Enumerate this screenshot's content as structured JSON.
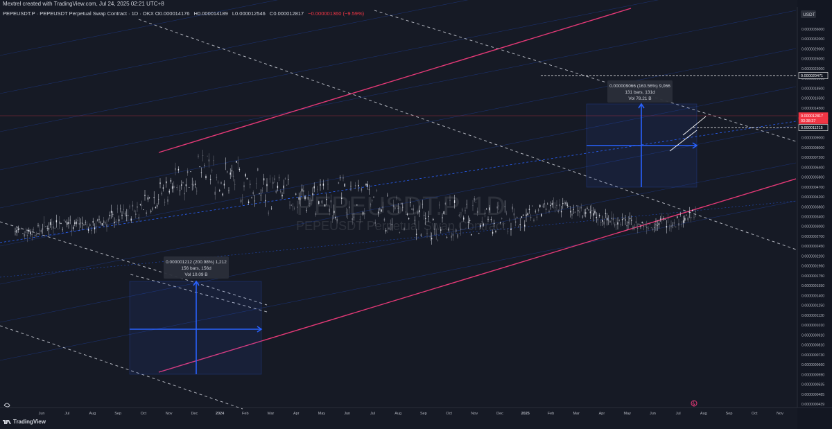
{
  "header": {
    "credit": "Mextrel created with TradingView.com, Jul 24, 2025 02:21 UTC+8",
    "symbol_line": "PEPEUSDT.P · PEPEUSDT Perpetual Swap Contract · 1D · OKX",
    "ohlc": [
      {
        "label": "O",
        "value": "0.000014176"
      },
      {
        "label": "H",
        "value": "0.000014189"
      },
      {
        "label": "L",
        "value": "0.000012546"
      },
      {
        "label": "C",
        "value": "0.000012817"
      }
    ],
    "change": "−0.000001360 (−9.59%)"
  },
  "watermark": {
    "symbol": "PEPEUSDT.P, 1D",
    "description": "PEPEUSDT Perpetual Swap Contract"
  },
  "footer": {
    "brand": "TradingView"
  },
  "colors": {
    "background": "#161a25",
    "up": "#26a69a",
    "down": "#ef5350",
    "channel_red": "#e53977",
    "projection_blue": "#2962ff",
    "dashed_white": "#b2b5be",
    "last_price": "#f23645"
  },
  "chart_data": {
    "type": "line",
    "title": "PEPEUSDT.P · PEPEUSDT Perpetual Swap Contract · 1D · OKX",
    "price_currency": "USDT",
    "y_scale": "log",
    "y_ticks": [
      "0.0000036000",
      "0.0000032000",
      "0.0000029000",
      "0.0000026000",
      "0.0000023000",
      "0.0000021000",
      "0.0000018500",
      "0.0000016500",
      "0.0000014500",
      "0.0000011000",
      "0.0000010000",
      "0.0000009000",
      "0.0000008000",
      "0.0000007200",
      "0.0000006400",
      "0.0000005800",
      "0.0000004700",
      "0.0000004200",
      "0.0000003800",
      "0.0000003400",
      "0.0000003000",
      "0.0000002700",
      "0.0000002450",
      "0.0000002200",
      "0.0000001960",
      "0.0000001750",
      "0.0000001550",
      "0.0000001400",
      "0.0000001250",
      "0.0000001130",
      "0.0000001010",
      "0.0000000910",
      "0.0000000810",
      "0.0000000730",
      "0.0000000660",
      "0.0000000590",
      "0.0000000535",
      "0.0000000485",
      "0.0000000439"
    ],
    "price_labels": [
      {
        "text": "0.000020471",
        "style": "outline"
      },
      {
        "text": "0.000012817",
        "style": "last"
      },
      {
        "text": "03:38:37",
        "style": "countdown"
      },
      {
        "text": "0.000011215",
        "style": "outline"
      }
    ],
    "x_ticks": [
      "Jun",
      "Jul",
      "Aug",
      "Sep",
      "Oct",
      "Nov",
      "Dec",
      "2024",
      "Feb",
      "Mar",
      "Apr",
      "May",
      "Jun",
      "Jul",
      "Aug",
      "Sep",
      "Oct",
      "Nov",
      "Dec",
      "2025",
      "Feb",
      "Mar",
      "Apr",
      "May",
      "Jun",
      "Jul",
      "Aug",
      "Sep",
      "Oct",
      "Nov"
    ],
    "price_path": [
      [
        7.5e-07,
        1.2e-06
      ],
      [
        8e-07,
        1.1e-06
      ],
      [
        9e-07,
        1.3e-06
      ],
      [
        8.5e-07,
        1.4e-06
      ],
      [
        8.8e-07,
        1.2e-06
      ],
      [
        9e-07,
        1.5e-06
      ],
      [
        9.5e-07,
        1.7e-06
      ],
      [
        1.1e-06,
        2.2e-06
      ],
      [
        1.2e-06,
        3e-06
      ],
      [
        1.4e-06,
        4e-06
      ],
      [
        1.3e-06,
        4.8e-06
      ],
      [
        1.2e-06,
        4.5e-06
      ],
      [
        1e-06,
        4.1e-06
      ],
      [
        8.8e-07,
        3.6e-06
      ],
      [
        8.6e-07,
        3.2e-06
      ],
      [
        8.5e-07,
        3e-06
      ],
      [
        8.2e-07,
        2.9e-06
      ],
      [
        7.8e-07,
        3.1e-06
      ],
      [
        7.2e-07,
        3e-06
      ],
      [
        6.8e-07,
        2.6e-06
      ],
      [
        6.5e-07,
        2.2e-06
      ],
      [
        6.3e-07,
        1.9e-06
      ],
      [
        6e-07,
        1.8e-06
      ],
      [
        6e-07,
        2e-06
      ],
      [
        6.2e-07,
        2.1e-06
      ],
      [
        6.5e-07,
        1.9e-06
      ],
      [
        7e-07,
        1.7e-06
      ],
      [
        9e-07,
        1.6e-06
      ],
      [
        1.1e-06,
        1.7e-06
      ],
      [
        1.2e-06,
        1.8e-06
      ],
      [
        1.1e-06,
        1.6e-06
      ],
      [
        1e-06,
        1.4e-06
      ],
      [
        9.8e-07,
        1.3e-06
      ],
      [
        9.3e-07,
        1.2e-06
      ],
      [
        9e-07,
        1.3e-06
      ],
      [
        9.5e-07,
        1.4e-06
      ],
      [
        1.1e-06,
        1.5e-06
      ]
    ],
    "measurements": [
      {
        "lines": [
          "0.000001212 (200.98%) 1,212",
          "156 bars, 156d",
          "Vol 10.09 B"
        ]
      },
      {
        "lines": [
          "0.000009066 (163.56%) 9,066",
          "131 bars, 131d",
          "Vol 78.21 B"
        ]
      }
    ]
  }
}
